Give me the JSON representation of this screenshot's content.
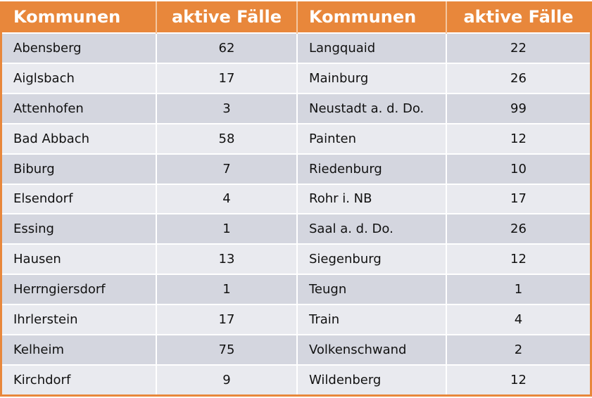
{
  "headers": [
    "Kommunen",
    "aktive Fälle",
    "Kommunen",
    "aktive Fälle"
  ],
  "colors": {
    "header": "#E8873B",
    "row_odd": "#D4D6DF",
    "row_even": "#E9EAEF"
  },
  "rows": [
    [
      "Abensberg",
      "62",
      "Langquaid",
      "22"
    ],
    [
      "Aiglsbach",
      "17",
      "Mainburg",
      "26"
    ],
    [
      "Attenhofen",
      "3",
      "Neustadt a. d. Do.",
      "99"
    ],
    [
      "Bad Abbach",
      "58",
      "Painten",
      "12"
    ],
    [
      "Biburg",
      "7",
      "Riedenburg",
      "10"
    ],
    [
      "Elsendorf",
      "4",
      "Rohr i. NB",
      "17"
    ],
    [
      "Essing",
      "1",
      "Saal a. d. Do.",
      "26"
    ],
    [
      "Hausen",
      "13",
      "Siegenburg",
      "12"
    ],
    [
      "Herrngiersdorf",
      "1",
      "Teugn",
      "1"
    ],
    [
      "Ihrlerstein",
      "17",
      "Train",
      "4"
    ],
    [
      "Kelheim",
      "75",
      "Volkenschwand",
      "2"
    ],
    [
      "Kirchdorf",
      "9",
      "Wildenberg",
      "12"
    ]
  ]
}
